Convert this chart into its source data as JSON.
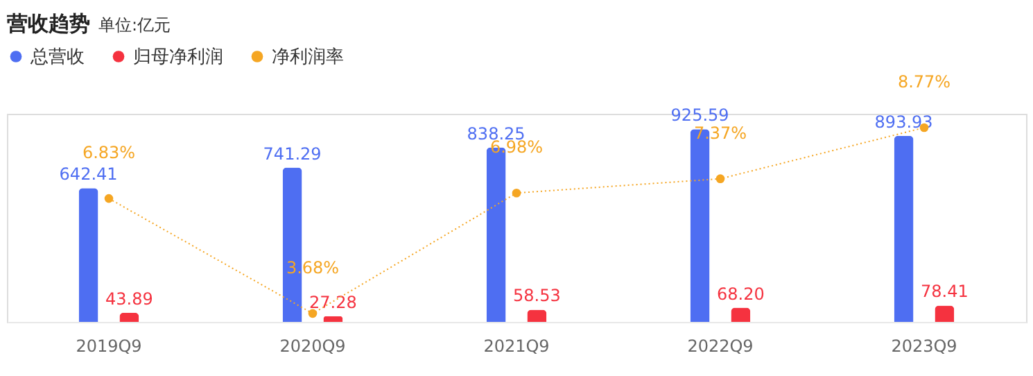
{
  "chart_data": {
    "type": "bar",
    "title": "营收趋势",
    "subtitle": "单位:亿元",
    "categories": [
      "2019Q9",
      "2020Q9",
      "2021Q9",
      "2022Q9",
      "2023Q9"
    ],
    "series": [
      {
        "name": "总营收",
        "color": "#4e6ef2",
        "values": [
          642.41,
          741.29,
          838.25,
          925.59,
          893.93
        ]
      },
      {
        "name": "归母净利润",
        "color": "#f5323f",
        "values": [
          43.89,
          27.28,
          58.53,
          68.2,
          78.41
        ],
        "value_labels": [
          "43.89",
          "27.28",
          "58.53",
          "68.20",
          "78.41"
        ]
      },
      {
        "name": "净利润率",
        "type": "line",
        "axis": "y2",
        "color": "#f5a623",
        "values": [
          6.83,
          3.68,
          6.98,
          7.37,
          8.77
        ],
        "value_labels": [
          "6.83%",
          "3.68%",
          "6.98%",
          "7.37%",
          "8.77%"
        ],
        "marker": "circle",
        "line_style": "dotted"
      }
    ],
    "ylim": [
      0,
      1000
    ],
    "y2lim": [
      3.45,
      9.15
    ],
    "tick_labels": "x",
    "data_labels": true,
    "legend": "top left",
    "grid": false
  }
}
